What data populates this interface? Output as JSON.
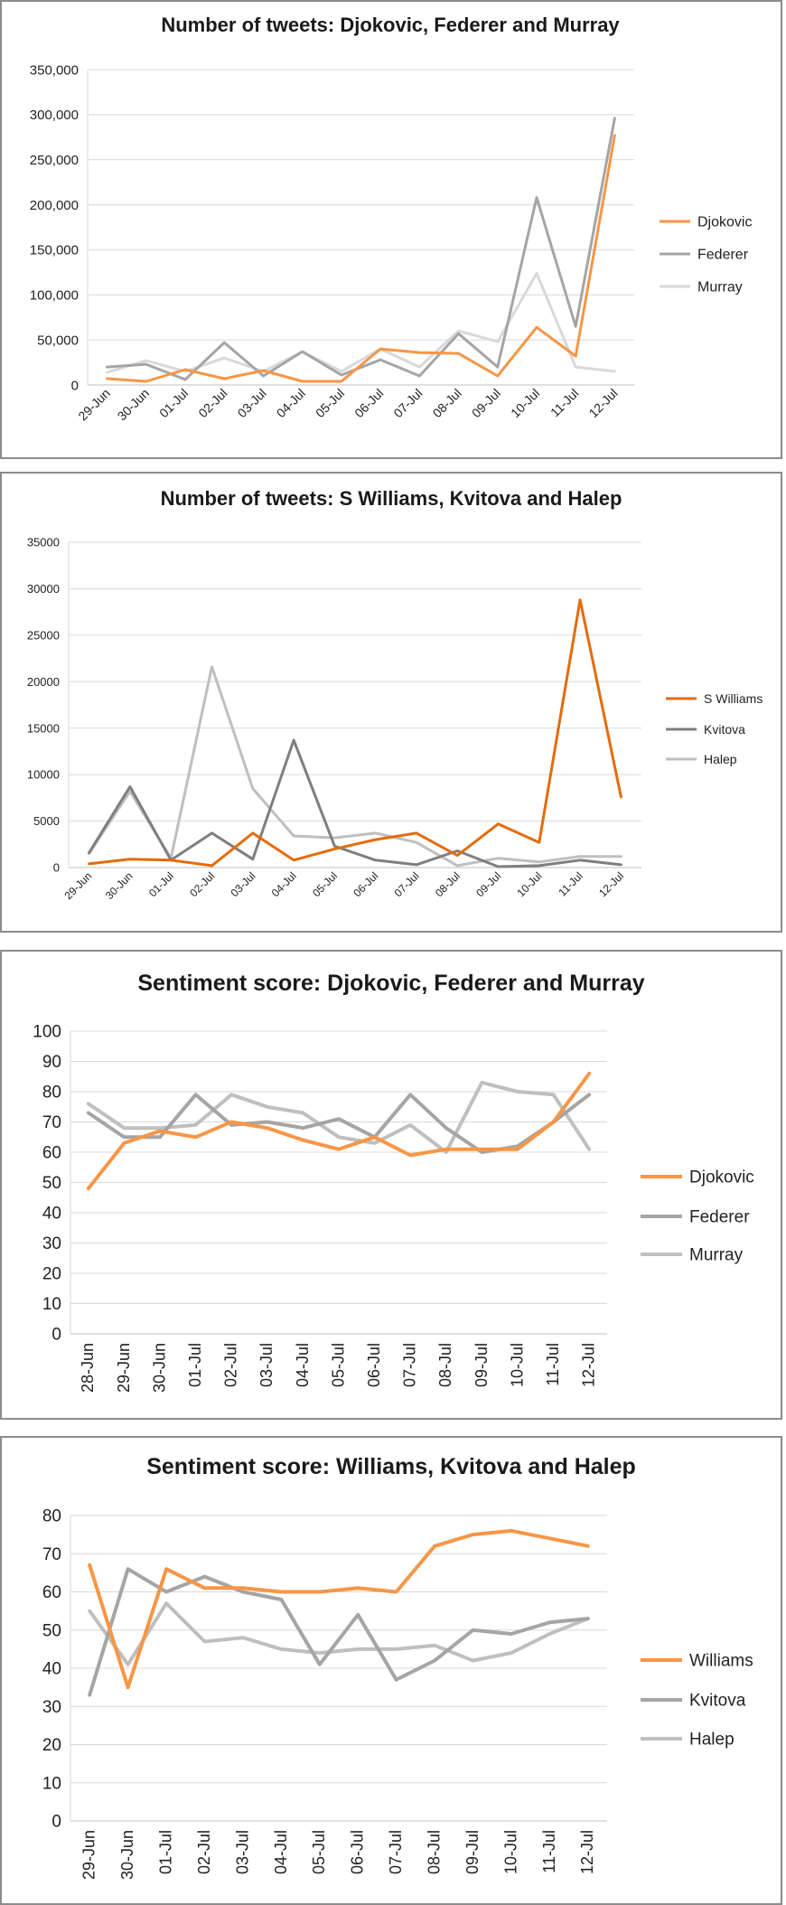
{
  "chart_data": [
    {
      "type": "line",
      "title": "Number of tweets: Djokovic, Federer and Murray",
      "categories": [
        "29-Jun",
        "30-Jun",
        "01-Jul",
        "02-Jul",
        "03-Jul",
        "04-Jul",
        "05-Jul",
        "06-Jul",
        "07-Jul",
        "08-Jul",
        "09-Jul",
        "10-Jul",
        "11-Jul",
        "12-Jul"
      ],
      "ylim": [
        0,
        350000
      ],
      "yticks": [
        "0",
        "50,000",
        "100,000",
        "150,000",
        "200,000",
        "250,000",
        "300,000",
        "350,000"
      ],
      "grid": "horizontal",
      "legend": "right",
      "series": [
        {
          "name": "Djokovic",
          "color": "#F79646",
          "values": [
            7000,
            4000,
            17000,
            7000,
            16000,
            4000,
            4000,
            40000,
            36000,
            35000,
            10000,
            64000,
            32000,
            277000
          ]
        },
        {
          "name": "Federer",
          "color": "#A5A5A5",
          "values": [
            20000,
            23000,
            6000,
            47000,
            10000,
            37000,
            11000,
            28000,
            10000,
            57000,
            20000,
            208000,
            65000,
            296000
          ]
        },
        {
          "name": "Murray",
          "color": "#D9D9D9",
          "values": [
            14000,
            27000,
            15000,
            30000,
            15000,
            37000,
            15000,
            40000,
            20000,
            60000,
            48000,
            124000,
            20000,
            15000
          ]
        }
      ]
    },
    {
      "type": "line",
      "title": "Number of tweets: S Williams, Kvitova and Halep",
      "categories": [
        "29-Jun",
        "30-Jun",
        "01-Jul",
        "02-Jul",
        "03-Jul",
        "04-Jul",
        "05-Jul",
        "06-Jul",
        "07-Jul",
        "08-Jul",
        "09-Jul",
        "10-Jul",
        "11-Jul",
        "12-Jul"
      ],
      "ylim": [
        0,
        35000
      ],
      "yticks": [
        "0",
        "5000",
        "10000",
        "15000",
        "20000",
        "25000",
        "30000",
        "35000"
      ],
      "grid": "horizontal",
      "legend": "right",
      "series": [
        {
          "name": "S Williams",
          "color": "#E46C0A",
          "values": [
            400,
            900,
            800,
            200,
            3700,
            800,
            2000,
            3000,
            3700,
            1300,
            4700,
            2700,
            28800,
            7600
          ]
        },
        {
          "name": "Kvitova",
          "color": "#7F7F7F",
          "values": [
            1600,
            8700,
            800,
            3700,
            900,
            13700,
            2300,
            800,
            300,
            1800,
            100,
            200,
            800,
            300
          ]
        },
        {
          "name": "Halep",
          "color": "#BFBFBF",
          "values": [
            1500,
            8200,
            1000,
            21600,
            8500,
            3400,
            3200,
            3700,
            2700,
            200,
            1000,
            600,
            1200,
            1200
          ]
        }
      ]
    },
    {
      "type": "line",
      "title": "Sentiment score: Djokovic, Federer and Murray",
      "categories": [
        "28-Jun",
        "29-Jun",
        "30-Jun",
        "01-Jul",
        "02-Jul",
        "03-Jul",
        "04-Jul",
        "05-Jul",
        "06-Jul",
        "07-Jul",
        "08-Jul",
        "09-Jul",
        "10-Jul",
        "11-Jul",
        "12-Jul"
      ],
      "ylim": [
        0,
        100
      ],
      "yticks": [
        "0",
        "10",
        "20",
        "30",
        "40",
        "50",
        "60",
        "70",
        "80",
        "90",
        "100"
      ],
      "grid": "horizontal",
      "legend": "right",
      "series": [
        {
          "name": "Djokovic",
          "color": "#F79646",
          "values": [
            48,
            63,
            67,
            65,
            70,
            68,
            64,
            61,
            65,
            59,
            61,
            61,
            61,
            70,
            86
          ]
        },
        {
          "name": "Federer",
          "color": "#A5A5A5",
          "values": [
            73,
            65,
            65,
            79,
            69,
            70,
            68,
            71,
            65,
            79,
            68,
            60,
            62,
            70,
            79
          ]
        },
        {
          "name": "Murray",
          "color": "#BFBFBF",
          "values": [
            76,
            68,
            68,
            69,
            79,
            75,
            73,
            65,
            63,
            69,
            60,
            83,
            80,
            79,
            61
          ]
        }
      ]
    },
    {
      "type": "line",
      "title": "Sentiment score: Williams, Kvitova and Halep",
      "categories": [
        "29-Jun",
        "30-Jun",
        "01-Jul",
        "02-Jul",
        "03-Jul",
        "04-Jul",
        "05-Jul",
        "06-Jul",
        "07-Jul",
        "08-Jul",
        "09-Jul",
        "10-Jul",
        "11-Jul",
        "12-Jul"
      ],
      "ylim": [
        0,
        80
      ],
      "yticks": [
        "0",
        "10",
        "20",
        "30",
        "40",
        "50",
        "60",
        "70",
        "80"
      ],
      "grid": "horizontal",
      "legend": "right",
      "series": [
        {
          "name": "Williams",
          "color": "#F79646",
          "values": [
            67,
            35,
            66,
            61,
            61,
            60,
            60,
            61,
            60,
            72,
            75,
            76,
            74,
            72
          ]
        },
        {
          "name": "Kvitova",
          "color": "#A5A5A5",
          "values": [
            33,
            66,
            60,
            64,
            60,
            58,
            41,
            54,
            37,
            42,
            50,
            49,
            52,
            53
          ]
        },
        {
          "name": "Halep",
          "color": "#BFBFBF",
          "values": [
            55,
            41,
            57,
            47,
            48,
            45,
            44,
            45,
            45,
            46,
            42,
            44,
            49,
            53
          ]
        }
      ]
    }
  ]
}
